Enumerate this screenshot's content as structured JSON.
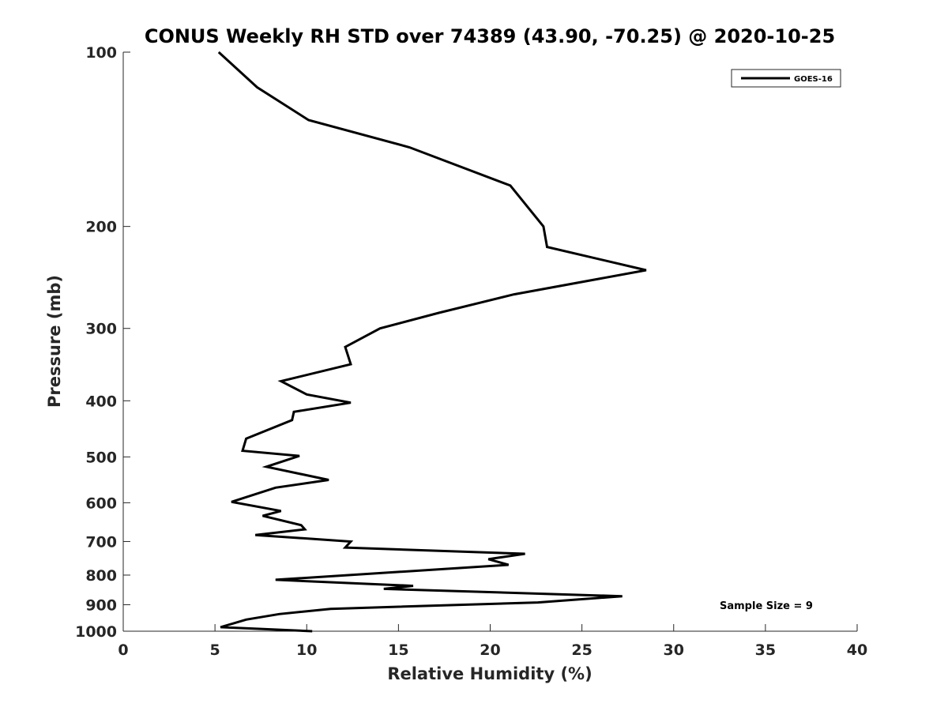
{
  "chart_data": {
    "type": "line",
    "title": "CONUS Weekly RH STD over 74389 (43.90, -70.25) @ 2020-10-25",
    "xlabel": "Relative Humidity (%)",
    "ylabel": "Pressure (mb)",
    "xlim": [
      0,
      40
    ],
    "ylim": [
      100,
      1000
    ],
    "y_scale": "log",
    "y_reversed": true,
    "grid": false,
    "legend_position": "top-right",
    "x_ticks": [
      "0",
      "5",
      "10",
      "15",
      "20",
      "25",
      "30",
      "35",
      "40"
    ],
    "y_ticks": [
      "100",
      "200",
      "300",
      "400",
      "500",
      "600",
      "700",
      "800",
      "900",
      "1000"
    ],
    "annotation": "Sample Size = 9",
    "series": [
      {
        "name": "GOES-16",
        "color": "#000000",
        "x": [
          5.2,
          7.3,
          10.1,
          15.6,
          21.1,
          22.9,
          23.1,
          28.5,
          21.3,
          17.2,
          14.0,
          12.1,
          12.4,
          8.6,
          10.0,
          12.4,
          9.3,
          9.2,
          6.7,
          6.5,
          9.6,
          7.8,
          11.2,
          8.3,
          5.9,
          8.6,
          7.6,
          9.7,
          9.9,
          7.2,
          12.4,
          12.1,
          21.9,
          19.9,
          21.0,
          8.3,
          15.8,
          14.2,
          27.2,
          22.6,
          11.3,
          8.5,
          6.7,
          5.3,
          10.3
        ],
        "y": [
          100,
          115,
          131,
          146,
          170,
          200,
          217,
          238,
          262,
          282,
          300,
          323,
          346,
          370,
          390,
          403,
          418,
          432,
          465,
          488,
          498,
          520,
          548,
          565,
          598,
          620,
          632,
          656,
          667,
          682,
          700,
          717,
          735,
          751,
          768,
          815,
          835,
          845,
          870,
          892,
          915,
          934,
          955,
          984,
          1000
        ]
      }
    ]
  }
}
